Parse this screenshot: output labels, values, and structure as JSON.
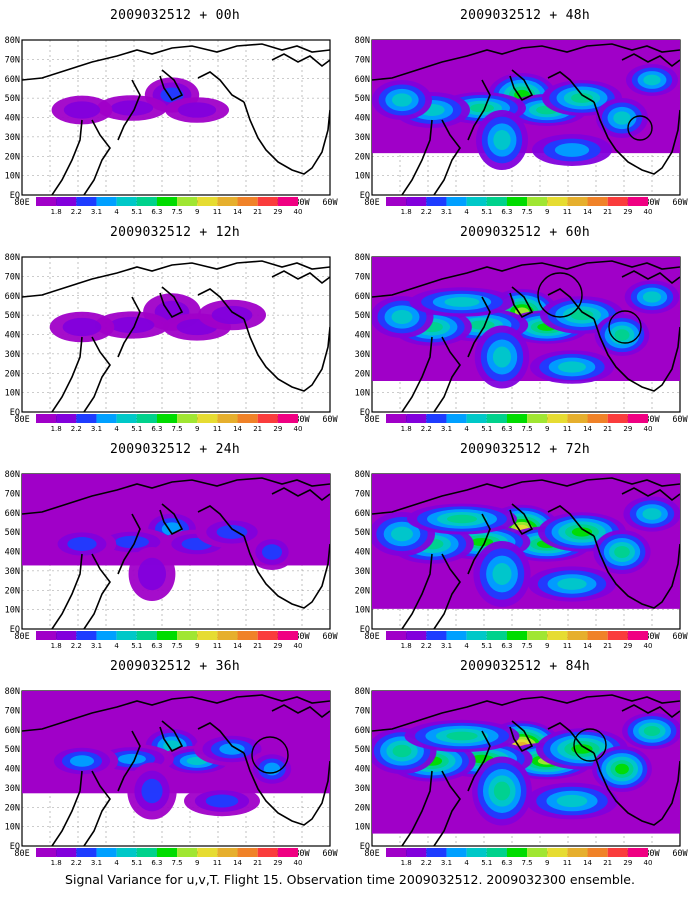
{
  "panels": [
    {
      "title": "2009032512 + 00h",
      "level": 0,
      "circles": []
    },
    {
      "title": "2009032512 + 48h",
      "level": 4,
      "circles": [
        [
          640,
          128,
          12
        ]
      ]
    },
    {
      "title": "2009032512 + 12h",
      "level": 1,
      "circles": []
    },
    {
      "title": "2009032512 + 60h",
      "level": 5,
      "circles": [
        [
          560,
          295,
          22
        ],
        [
          625,
          327,
          16
        ]
      ]
    },
    {
      "title": "2009032512 + 24h",
      "level": 2,
      "circles": []
    },
    {
      "title": "2009032512 + 72h",
      "level": 6,
      "circles": []
    },
    {
      "title": "2009032512 + 36h",
      "level": 3,
      "circles": [
        [
          270,
          755,
          18
        ]
      ]
    },
    {
      "title": "2009032512 + 84h",
      "level": 7,
      "circles": [
        [
          590,
          745,
          16
        ]
      ]
    }
  ],
  "lat_labels": [
    "80N",
    "70N",
    "60N",
    "50N",
    "40N",
    "30N",
    "20N",
    "10N",
    "EQ"
  ],
  "lon_labels": [
    "80E",
    "100E",
    "120E",
    "140E",
    "160E",
    "180",
    "160W",
    "140W",
    "120W",
    "100W",
    "80W",
    "60W"
  ],
  "colorbar": {
    "labels": [
      "1.8",
      "2.2",
      "3.1",
      "4",
      "5.1",
      "6.3",
      "7.5",
      "9",
      "11",
      "14",
      "21",
      "29",
      "40"
    ],
    "colors": [
      "#a000c8",
      "#8200dc",
      "#1e3cff",
      "#00a0ff",
      "#00c8c8",
      "#00d28c",
      "#00dc00",
      "#a0e632",
      "#e6dc32",
      "#e6af2d",
      "#f08228",
      "#fa3c3c",
      "#f00082"
    ]
  },
  "footer": "Signal Variance for u,v,T. Flight 15. Observation time 2009032512. 2009032300 ensemble."
}
